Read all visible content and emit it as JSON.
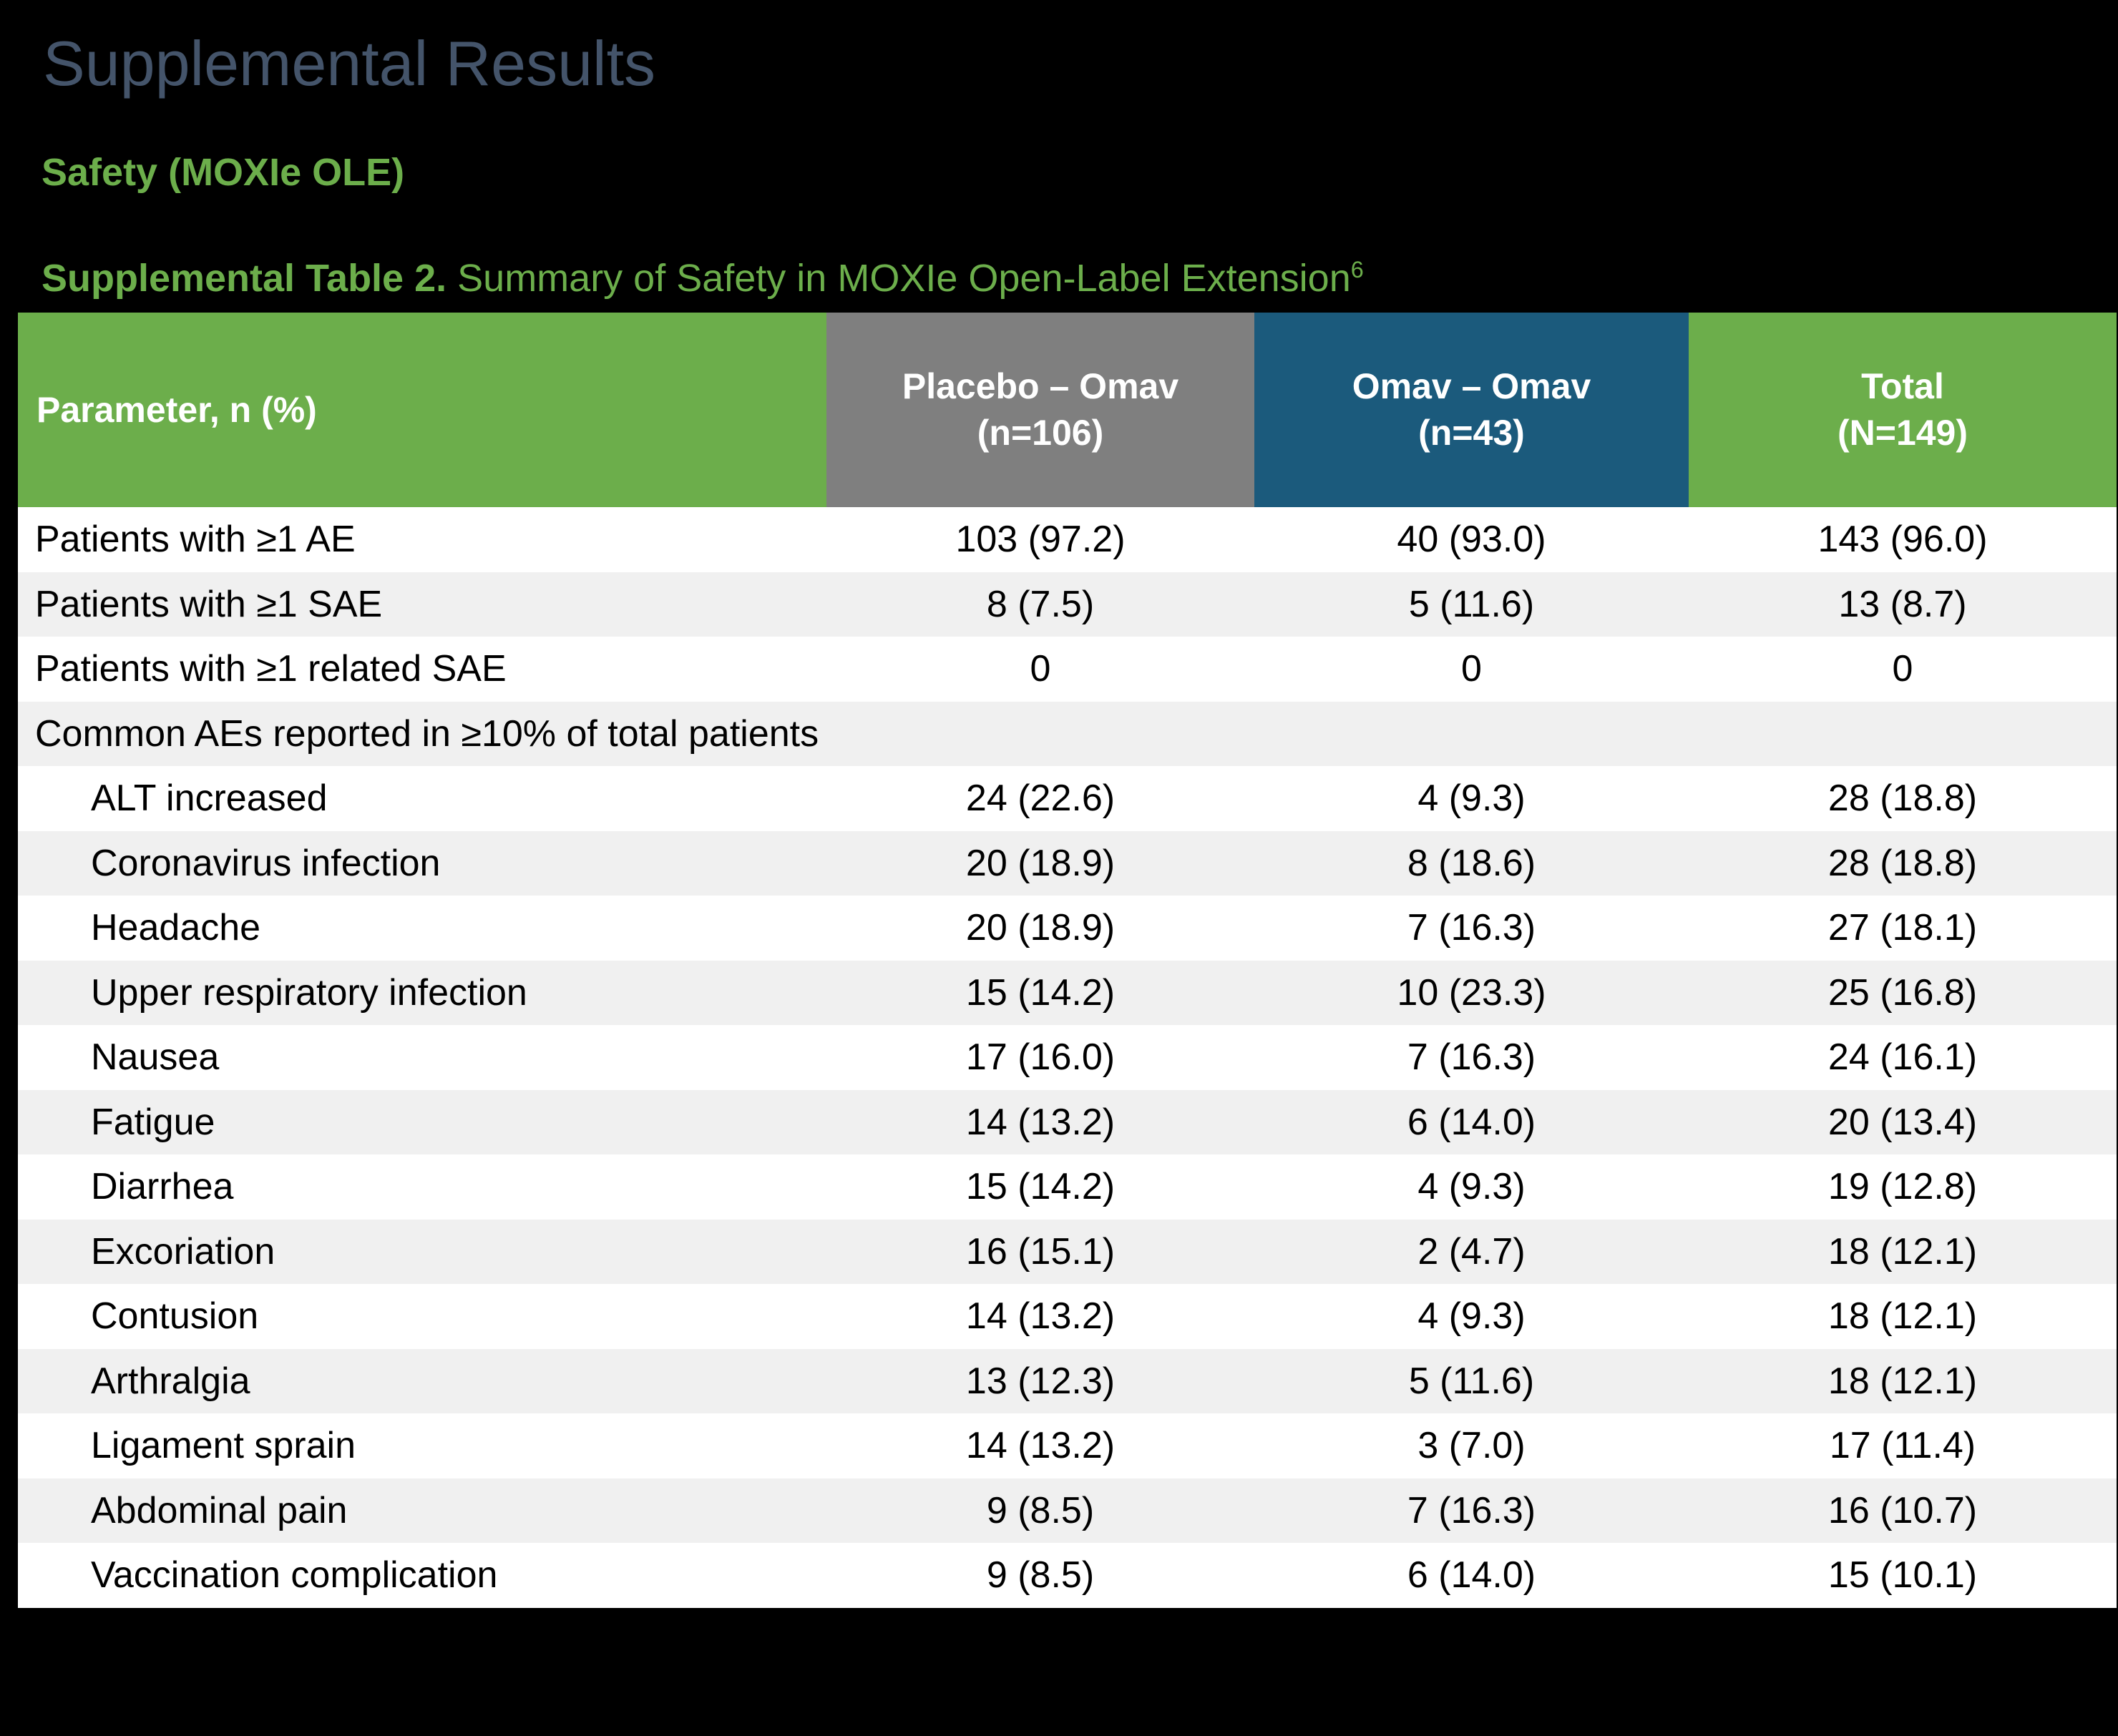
{
  "colors": {
    "background": "#000000",
    "title": "#44546A",
    "green": "#6CAE4B",
    "gray": "#7F7F7F",
    "blue": "#1B5A7C",
    "stripe": "#F0F0F0",
    "header_text": "#FFFFFF",
    "body_text": "#000000"
  },
  "page": {
    "title": "Supplemental Results",
    "section_heading": "Safety (MOXIe OLE)",
    "caption_bold": "Supplemental Table 2.",
    "caption_rest": " Summary of Safety in MOXIe Open-Label Extension",
    "caption_superscript": "6"
  },
  "table": {
    "columns": [
      {
        "id": "parameter",
        "line1": "Parameter, n (%)",
        "line2": ""
      },
      {
        "id": "placebo-omav",
        "line1": "Placebo – Omav",
        "line2": "(n=106)"
      },
      {
        "id": "omav-omav",
        "line1": "Omav – Omav",
        "line2": "(n=43)"
      },
      {
        "id": "total",
        "line1": "Total",
        "line2": "(N=149)"
      }
    ],
    "rows": [
      {
        "label": "Patients with ≥1 AE",
        "type": "data",
        "indent": false,
        "values": [
          "103 (97.2)",
          "40 (93.0)",
          "143 (96.0)"
        ]
      },
      {
        "label": "Patients with ≥1 SAE",
        "type": "data",
        "indent": false,
        "values": [
          "8 (7.5)",
          "5 (11.6)",
          "13 (8.7)"
        ]
      },
      {
        "label": "Patients with ≥1 related SAE",
        "type": "data",
        "indent": false,
        "values": [
          "0",
          "0",
          "0"
        ]
      },
      {
        "label": "Common AEs reported in ≥10% of total patients",
        "type": "section",
        "indent": false,
        "values": []
      },
      {
        "label": "ALT increased",
        "type": "data",
        "indent": true,
        "values": [
          "24 (22.6)",
          "4 (9.3)",
          "28 (18.8)"
        ]
      },
      {
        "label": "Coronavirus infection",
        "type": "data",
        "indent": true,
        "values": [
          "20 (18.9)",
          "8 (18.6)",
          "28 (18.8)"
        ]
      },
      {
        "label": "Headache",
        "type": "data",
        "indent": true,
        "values": [
          "20 (18.9)",
          "7 (16.3)",
          "27 (18.1)"
        ]
      },
      {
        "label": "Upper respiratory infection",
        "type": "data",
        "indent": true,
        "values": [
          "15 (14.2)",
          "10 (23.3)",
          "25 (16.8)"
        ]
      },
      {
        "label": "Nausea",
        "type": "data",
        "indent": true,
        "values": [
          "17 (16.0)",
          "7 (16.3)",
          "24 (16.1)"
        ]
      },
      {
        "label": "Fatigue",
        "type": "data",
        "indent": true,
        "values": [
          "14 (13.2)",
          "6 (14.0)",
          "20 (13.4)"
        ]
      },
      {
        "label": "Diarrhea",
        "type": "data",
        "indent": true,
        "values": [
          "15 (14.2)",
          "4 (9.3)",
          "19 (12.8)"
        ]
      },
      {
        "label": "Excoriation",
        "type": "data",
        "indent": true,
        "values": [
          "16 (15.1)",
          "2 (4.7)",
          "18 (12.1)"
        ]
      },
      {
        "label": "Contusion",
        "type": "data",
        "indent": true,
        "values": [
          "14 (13.2)",
          "4 (9.3)",
          "18 (12.1)"
        ]
      },
      {
        "label": "Arthralgia",
        "type": "data",
        "indent": true,
        "values": [
          "13 (12.3)",
          "5 (11.6)",
          "18 (12.1)"
        ]
      },
      {
        "label": "Ligament sprain",
        "type": "data",
        "indent": true,
        "values": [
          "14 (13.2)",
          "3 (7.0)",
          "17 (11.4)"
        ]
      },
      {
        "label": "Abdominal pain",
        "type": "data",
        "indent": true,
        "values": [
          "9 (8.5)",
          "7 (16.3)",
          "16 (10.7)"
        ]
      },
      {
        "label": "Vaccination complication",
        "type": "data",
        "indent": true,
        "values": [
          "9 (8.5)",
          "6 (14.0)",
          "15 (10.1)"
        ]
      }
    ]
  }
}
